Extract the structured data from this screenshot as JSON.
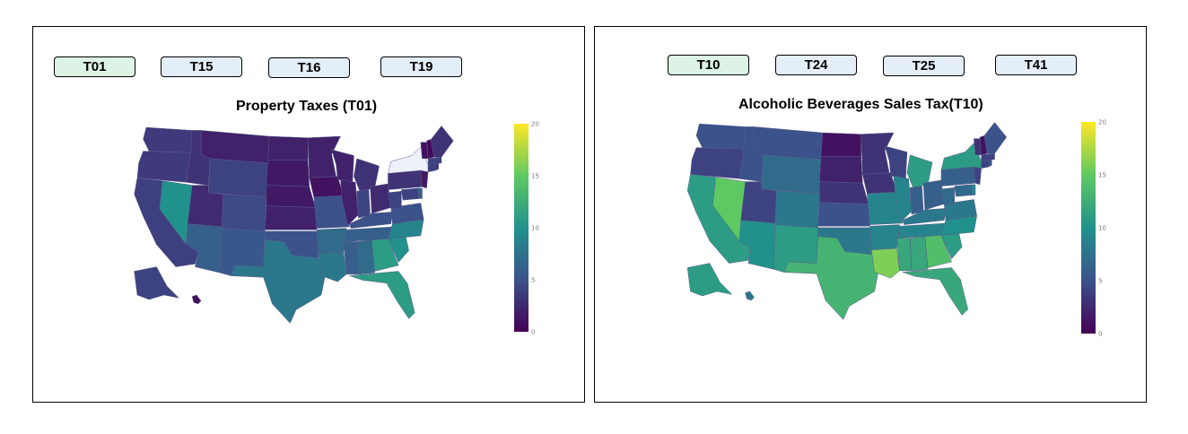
{
  "panels": [
    {
      "tabs": [
        "T01",
        "T15",
        "T16",
        "T19"
      ],
      "active_tab": "T01",
      "title": "Property Taxes (T01)",
      "colorbar": {
        "ticks": [
          "0",
          "5",
          "10",
          "15",
          "20"
        ],
        "min": 0,
        "max": 20
      }
    },
    {
      "tabs": [
        "T10",
        "T24",
        "T25",
        "T41"
      ],
      "active_tab": "T10",
      "title": "Alcoholic Beverages Sales Tax(T10)",
      "colorbar": {
        "ticks": [
          "0",
          "5",
          "10",
          "15",
          "20"
        ],
        "min": 0,
        "max": 20
      }
    }
  ],
  "colors": {
    "tab_active": "#dcf3e6",
    "tab_inactive": "#e4eef8",
    "colorscale": [
      "#440154",
      "#3b528b",
      "#21918c",
      "#5ec962",
      "#fde725"
    ],
    "missing_state": "#eef0fa",
    "state_border": "#5a5a8a"
  },
  "chart_data": [
    {
      "type": "choropleth",
      "title": "Property Taxes (T01)",
      "colorscale": "viridis",
      "range": [
        0,
        20
      ],
      "values": {
        "WA": 3.5,
        "OR": 3.5,
        "CA": 3.8,
        "NV": 10,
        "ID": 3,
        "MT": 2,
        "WY": 4,
        "UT": 2.5,
        "AZ": 6,
        "CO": 4.5,
        "NM": 5.5,
        "ND": 2,
        "SD": 1.5,
        "NE": 1.5,
        "KS": 2,
        "OK": 5,
        "TX": 8,
        "MN": 2,
        "IA": 1,
        "MO": 5,
        "AR": 7,
        "LA": 8,
        "WI": 2,
        "IL": 2,
        "MI": 3,
        "IN": 4,
        "OH": 2.5,
        "KY": 5,
        "TN": 6,
        "MS": 6,
        "AL": 7,
        "GA": 11,
        "FL": 11,
        "SC": 10,
        "NC": 9,
        "VA": 5,
        "WV": 4,
        "MD": 4,
        "DE": 6,
        "PA": 3,
        "NJ": 1.5,
        "NY": null,
        "CT": 4,
        "RI": 3,
        "MA": 4,
        "VT": 1,
        "NH": 0.5,
        "ME": 3,
        "AK": 4,
        "HI": 1
      }
    },
    {
      "type": "choropleth",
      "title": "Alcoholic Beverages Sales Tax(T10)",
      "colorscale": "viridis",
      "range": [
        0,
        20
      ],
      "values": {
        "WA": 5,
        "OR": 4,
        "CA": 11,
        "NV": 15,
        "ID": 5,
        "MT": 5,
        "WY": 7,
        "UT": 4,
        "AZ": 10,
        "CO": 8,
        "NM": 11,
        "ND": 1,
        "SD": 2,
        "NE": 3,
        "KS": 5,
        "OK": 8,
        "TX": 13,
        "MN": 3,
        "IA": 3,
        "MO": 9,
        "AR": 9,
        "LA": 16,
        "WI": 4,
        "IL": 9,
        "MI": 11,
        "IN": 6,
        "OH": 6,
        "KY": 8,
        "TN": 9,
        "MS": 12,
        "AL": 12,
        "GA": 14,
        "FL": 12,
        "SC": 11,
        "NC": 10,
        "VA": 8,
        "WV": 7,
        "MD": 7,
        "DE": 9,
        "PA": 6,
        "NJ": 4,
        "NY": 11,
        "CT": 4,
        "RI": 5,
        "MA": 4,
        "VT": 3,
        "NH": 1,
        "ME": 5,
        "AK": 11,
        "HI": 8
      }
    }
  ]
}
